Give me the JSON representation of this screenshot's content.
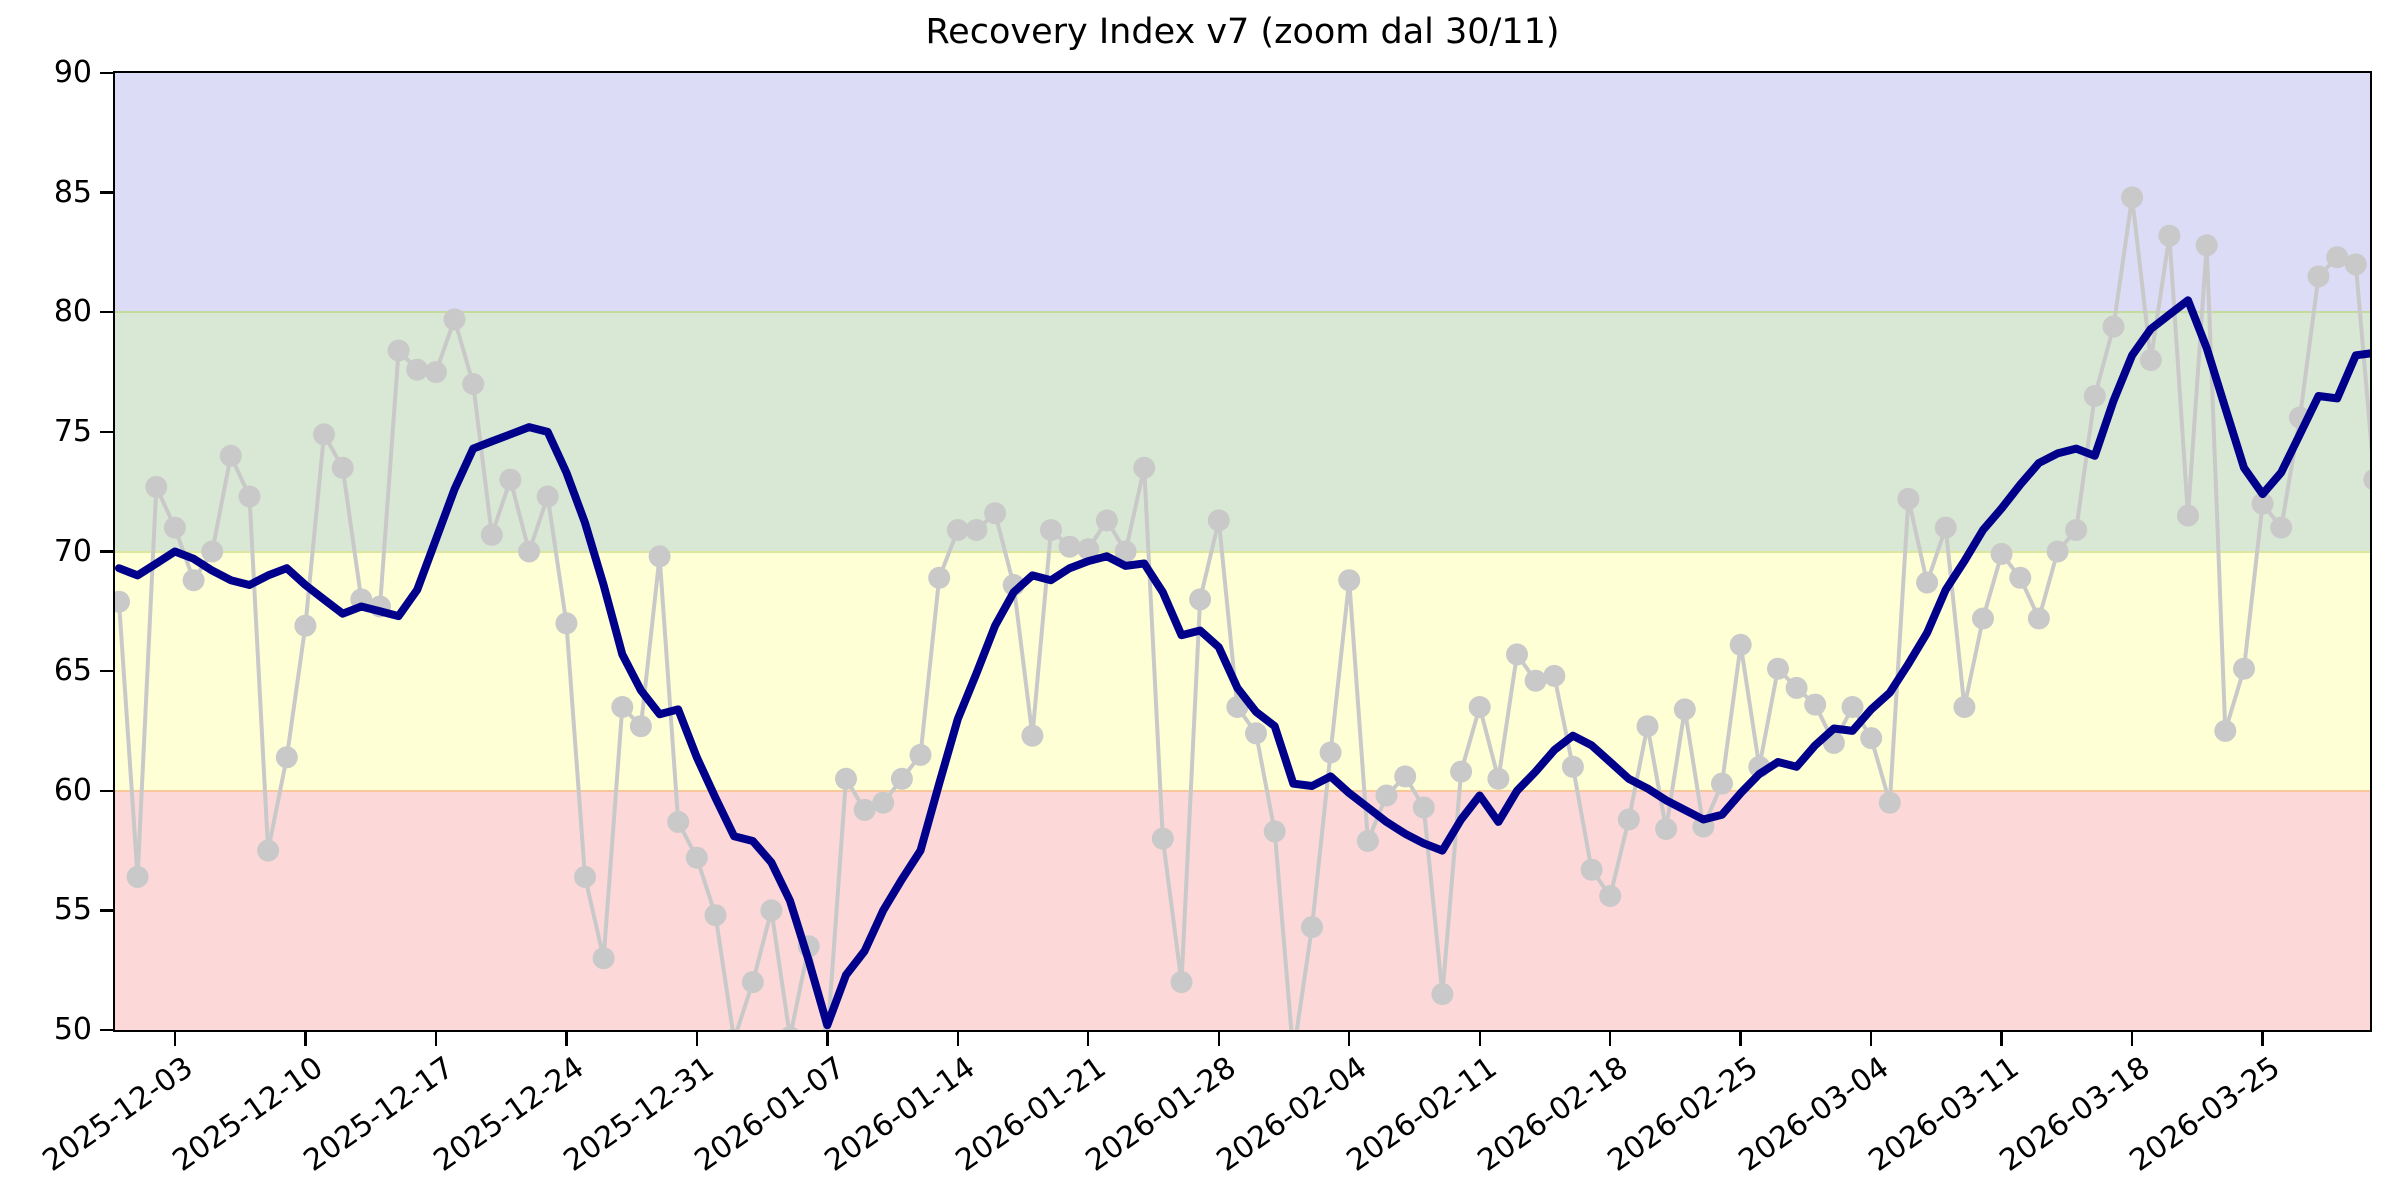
{
  "title": "Recovery Index v7 (zoom dal 30/11)",
  "chart_data": {
    "type": "line",
    "title": "Recovery Index v7 (zoom dal 30/11)",
    "xlabel": "",
    "ylabel": "",
    "ylim": [
      50,
      90
    ],
    "x_start_date": "2025-11-30",
    "x_interval_days": 1,
    "grid": false,
    "legend": "none",
    "yticks": [
      50,
      55,
      60,
      65,
      70,
      75,
      80,
      85,
      90
    ],
    "xticks": [
      {
        "label": "2025-12-03",
        "day": 3
      },
      {
        "label": "2025-12-10",
        "day": 10
      },
      {
        "label": "2025-12-17",
        "day": 17
      },
      {
        "label": "2025-12-24",
        "day": 24
      },
      {
        "label": "2025-12-31",
        "day": 31
      },
      {
        "label": "2026-01-07",
        "day": 38
      },
      {
        "label": "2026-01-14",
        "day": 45
      },
      {
        "label": "2026-01-21",
        "day": 52
      },
      {
        "label": "2026-01-28",
        "day": 59
      },
      {
        "label": "2026-02-04",
        "day": 66
      },
      {
        "label": "2026-02-11",
        "day": 73
      },
      {
        "label": "2026-02-18",
        "day": 80
      },
      {
        "label": "2026-02-25",
        "day": 87
      },
      {
        "label": "2026-03-04",
        "day": 94
      },
      {
        "label": "2026-03-11",
        "day": 101
      },
      {
        "label": "2026-03-18",
        "day": 108
      },
      {
        "label": "2026-03-25",
        "day": 115
      }
    ],
    "bands": [
      {
        "name": "band-50-60",
        "from": 50,
        "to": 60,
        "color": "#fcd8d8",
        "edge_color": "#f9c89a"
      },
      {
        "name": "band-60-70",
        "from": 60,
        "to": 70,
        "color": "#ffffd6",
        "edge_color": "#dbe69e"
      },
      {
        "name": "band-70-80",
        "from": 70,
        "to": 80,
        "color": "#d9e8d4",
        "edge_color": "#c3dc9c"
      },
      {
        "name": "band-80-90",
        "from": 80,
        "to": 90,
        "color": "#dcdcf7",
        "edge_color": "#a9b1d8"
      }
    ],
    "series": [
      {
        "name": "daily-index",
        "color": "#c9c9c9",
        "line_width": 4,
        "marker": "circle",
        "marker_radius": 11,
        "values": [
          67.9,
          56.4,
          72.7,
          71.0,
          68.8,
          70.0,
          74.0,
          72.3,
          57.5,
          61.4,
          66.9,
          74.9,
          73.5,
          68.0,
          67.7,
          78.4,
          77.6,
          77.5,
          79.7,
          77.0,
          70.7,
          73.0,
          70.0,
          72.3,
          67.0,
          56.4,
          53.0,
          63.5,
          62.7,
          69.8,
          58.7,
          57.2,
          54.8,
          49.6,
          52.0,
          55.0,
          49.7,
          53.5,
          49.6,
          60.5,
          59.2,
          59.5,
          60.5,
          61.5,
          68.9,
          70.9,
          70.9,
          71.6,
          68.6,
          62.3,
          70.9,
          70.2,
          70.1,
          71.3,
          70.0,
          73.5,
          58.0,
          52.0,
          68.0,
          71.3,
          63.5,
          62.4,
          58.3,
          49.0,
          54.3,
          61.6,
          68.8,
          57.9,
          59.8,
          60.6,
          59.3,
          51.5,
          60.8,
          63.5,
          60.5,
          65.7,
          64.6,
          64.8,
          61.0,
          56.7,
          55.6,
          58.8,
          62.7,
          58.4,
          63.4,
          58.5,
          60.3,
          66.1,
          61.0,
          65.1,
          64.3,
          63.6,
          62.0,
          63.5,
          62.2,
          59.5,
          72.2,
          68.7,
          71.0,
          63.5,
          67.2,
          69.9,
          68.9,
          67.2,
          70.0,
          70.9,
          76.5,
          79.4,
          84.8,
          78.0,
          83.2,
          71.5,
          82.8,
          62.5,
          65.1,
          72.0,
          71.0,
          75.6,
          81.5,
          82.3,
          82.0,
          73.0
        ]
      },
      {
        "name": "recovery-index-ma7",
        "color": "#00008b",
        "line_width": 8,
        "marker": "none",
        "marker_radius": 0,
        "values": [
          69.3,
          69.0,
          69.5,
          70.0,
          69.7,
          69.2,
          68.8,
          68.6,
          69.0,
          69.3,
          68.6,
          68.0,
          67.4,
          67.7,
          67.5,
          67.3,
          68.4,
          70.5,
          72.6,
          74.3,
          74.6,
          74.9,
          75.2,
          75.0,
          73.3,
          71.2,
          68.6,
          65.7,
          64.2,
          63.2,
          63.4,
          61.4,
          59.7,
          58.1,
          57.9,
          57.0,
          55.4,
          52.9,
          50.2,
          52.3,
          53.3,
          55.0,
          56.3,
          57.5,
          60.3,
          63.0,
          64.9,
          66.9,
          68.3,
          69.0,
          68.8,
          69.3,
          69.6,
          69.8,
          69.4,
          69.5,
          68.3,
          66.5,
          66.7,
          66.0,
          64.3,
          63.3,
          62.7,
          60.3,
          60.2,
          60.6,
          59.9,
          59.3,
          58.7,
          58.2,
          57.8,
          57.5,
          58.8,
          59.8,
          58.7,
          60.0,
          60.8,
          61.7,
          62.3,
          61.9,
          61.2,
          60.5,
          60.1,
          59.6,
          59.2,
          58.8,
          59.0,
          59.9,
          60.7,
          61.2,
          61.0,
          61.9,
          62.6,
          62.5,
          63.4,
          64.1,
          65.3,
          66.6,
          68.4,
          69.6,
          70.9,
          71.8,
          72.8,
          73.7,
          74.1,
          74.3,
          74.0,
          76.3,
          78.2,
          79.3,
          79.9,
          80.5,
          78.5,
          76.0,
          73.5,
          72.4,
          73.3,
          74.9,
          76.5,
          76.4,
          78.2,
          78.3
        ]
      }
    ]
  },
  "axis_color": "#000000",
  "background_color": "#ffffff"
}
